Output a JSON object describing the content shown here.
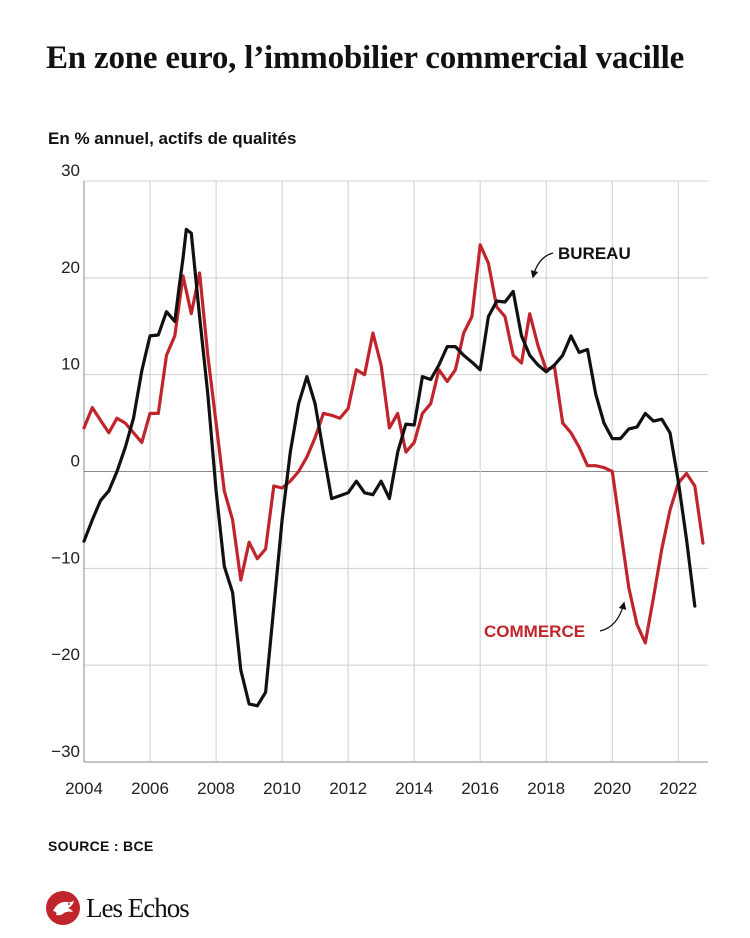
{
  "title": "En zone euro, l’immobilier commercial vacille",
  "subtitle": "En % annuel, actifs de qualités",
  "source": "SOURCE : BCE",
  "brand": "Les Echos",
  "colors": {
    "bureau": "#111111",
    "commerce": "#c0252b",
    "grid": "#cfcfcf",
    "logo": "#c0252b"
  },
  "chart_data": {
    "type": "line",
    "title": "En zone euro, l’immobilier commercial vacille",
    "subtitle": "En % annuel, actifs de qualités",
    "xlabel": "",
    "ylabel": "",
    "xlim": [
      2004,
      2022.9
    ],
    "ylim": [
      -30,
      30
    ],
    "yticks": [
      30,
      20,
      10,
      0,
      -10,
      -20,
      -30
    ],
    "ytick_labels": [
      "30",
      "20",
      "10",
      "0",
      "−10",
      "−20",
      "−30"
    ],
    "xticks": [
      2004,
      2006,
      2008,
      2010,
      2012,
      2014,
      2016,
      2018,
      2020,
      2022
    ],
    "xtick_labels": [
      "2004",
      "2006",
      "2008",
      "2010",
      "2012",
      "2014",
      "2016",
      "2018",
      "2020",
      "2022"
    ],
    "grid": true,
    "series": [
      {
        "name": "BUREAU",
        "color": "#111111",
        "points": [
          [
            2004.0,
            -7.2
          ],
          [
            2004.25,
            -5
          ],
          [
            2004.5,
            -3
          ],
          [
            2004.75,
            -2
          ],
          [
            2005.0,
            0
          ],
          [
            2005.25,
            2.5
          ],
          [
            2005.5,
            5.5
          ],
          [
            2005.75,
            10.4
          ],
          [
            2006.0,
            14.0
          ],
          [
            2006.25,
            14.1
          ],
          [
            2006.5,
            16.5
          ],
          [
            2006.75,
            15.5
          ],
          [
            2006.9,
            19.5
          ],
          [
            2007.0,
            22
          ],
          [
            2007.1,
            25
          ],
          [
            2007.25,
            24.6
          ],
          [
            2007.5,
            16
          ],
          [
            2007.75,
            8
          ],
          [
            2008.0,
            -2
          ],
          [
            2008.25,
            -9.8
          ],
          [
            2008.5,
            -12.5
          ],
          [
            2008.75,
            -20.5
          ],
          [
            2009.0,
            -24
          ],
          [
            2009.25,
            -24.2
          ],
          [
            2009.5,
            -22.8
          ],
          [
            2009.75,
            -14
          ],
          [
            2010.0,
            -5
          ],
          [
            2010.25,
            2
          ],
          [
            2010.5,
            7
          ],
          [
            2010.75,
            9.8
          ],
          [
            2011.0,
            7
          ],
          [
            2011.25,
            2
          ],
          [
            2011.5,
            -2.8
          ],
          [
            2011.75,
            -2.5
          ],
          [
            2012.0,
            -2.2
          ],
          [
            2012.25,
            -1
          ],
          [
            2012.5,
            -2.2
          ],
          [
            2012.75,
            -2.4
          ],
          [
            2013.0,
            -1
          ],
          [
            2013.25,
            -2.8
          ],
          [
            2013.5,
            2
          ],
          [
            2013.75,
            4.9
          ],
          [
            2014.0,
            4.8
          ],
          [
            2014.25,
            9.8
          ],
          [
            2014.5,
            9.5
          ],
          [
            2014.75,
            11
          ],
          [
            2015.0,
            12.9
          ],
          [
            2015.25,
            12.9
          ],
          [
            2015.5,
            12
          ],
          [
            2015.75,
            11.3
          ],
          [
            2016.0,
            10.5
          ],
          [
            2016.25,
            16
          ],
          [
            2016.5,
            17.6
          ],
          [
            2016.75,
            17.5
          ],
          [
            2017.0,
            18.6
          ],
          [
            2017.25,
            14
          ],
          [
            2017.5,
            12
          ],
          [
            2017.75,
            11
          ],
          [
            2018.0,
            10.3
          ],
          [
            2018.25,
            11
          ],
          [
            2018.5,
            12
          ],
          [
            2018.75,
            14
          ],
          [
            2019.0,
            12.3
          ],
          [
            2019.25,
            12.6
          ],
          [
            2019.5,
            8
          ],
          [
            2019.75,
            5
          ],
          [
            2020.0,
            3.4
          ],
          [
            2020.25,
            3.4
          ],
          [
            2020.5,
            4.4
          ],
          [
            2020.75,
            4.6
          ],
          [
            2021.0,
            6
          ],
          [
            2021.25,
            5.2
          ],
          [
            2021.5,
            5.4
          ],
          [
            2021.75,
            4
          ],
          [
            2022.0,
            -1
          ],
          [
            2022.25,
            -7
          ],
          [
            2022.5,
            -13.9
          ]
        ]
      },
      {
        "name": "COMMERCE",
        "color": "#c0252b",
        "points": [
          [
            2004.0,
            4.5
          ],
          [
            2004.25,
            6.6
          ],
          [
            2004.5,
            5.3
          ],
          [
            2004.75,
            4
          ],
          [
            2005.0,
            5.5
          ],
          [
            2005.25,
            5
          ],
          [
            2005.5,
            4
          ],
          [
            2005.75,
            3
          ],
          [
            2006.0,
            6
          ],
          [
            2006.25,
            6
          ],
          [
            2006.5,
            12
          ],
          [
            2006.75,
            14
          ],
          [
            2007.0,
            20.2
          ],
          [
            2007.25,
            16.3
          ],
          [
            2007.5,
            20.5
          ],
          [
            2007.75,
            12
          ],
          [
            2008.0,
            5
          ],
          [
            2008.25,
            -2
          ],
          [
            2008.5,
            -5
          ],
          [
            2008.75,
            -11.2
          ],
          [
            2009.0,
            -7.3
          ],
          [
            2009.25,
            -9
          ],
          [
            2009.5,
            -8
          ],
          [
            2009.75,
            -1.5
          ],
          [
            2010.0,
            -1.7
          ],
          [
            2010.25,
            -1
          ],
          [
            2010.5,
            0
          ],
          [
            2010.75,
            1.5
          ],
          [
            2011.0,
            3.5
          ],
          [
            2011.25,
            6
          ],
          [
            2011.5,
            5.8
          ],
          [
            2011.75,
            5.5
          ],
          [
            2012.0,
            6.5
          ],
          [
            2012.25,
            10.5
          ],
          [
            2012.5,
            10
          ],
          [
            2012.75,
            14.3
          ],
          [
            2013.0,
            11
          ],
          [
            2013.25,
            4.5
          ],
          [
            2013.5,
            6
          ],
          [
            2013.75,
            2
          ],
          [
            2014.0,
            3
          ],
          [
            2014.25,
            6
          ],
          [
            2014.5,
            7
          ],
          [
            2014.75,
            10.5
          ],
          [
            2015.0,
            9.3
          ],
          [
            2015.25,
            10.5
          ],
          [
            2015.5,
            14.3
          ],
          [
            2015.75,
            16
          ],
          [
            2016.0,
            23.4
          ],
          [
            2016.25,
            21.5
          ],
          [
            2016.5,
            17
          ],
          [
            2016.75,
            16
          ],
          [
            2017.0,
            12
          ],
          [
            2017.25,
            11.2
          ],
          [
            2017.5,
            16.3
          ],
          [
            2017.75,
            13
          ],
          [
            2018.0,
            10.5
          ],
          [
            2018.25,
            10.8
          ],
          [
            2018.5,
            5
          ],
          [
            2018.75,
            4
          ],
          [
            2019.0,
            2.5
          ],
          [
            2019.25,
            0.6
          ],
          [
            2019.5,
            0.6
          ],
          [
            2019.75,
            0.4
          ],
          [
            2020.0,
            0
          ],
          [
            2020.25,
            -6
          ],
          [
            2020.5,
            -12
          ],
          [
            2020.75,
            -15.8
          ],
          [
            2021.0,
            -17.7
          ],
          [
            2021.25,
            -13
          ],
          [
            2021.5,
            -8
          ],
          [
            2021.75,
            -4
          ],
          [
            2022.0,
            -1.2
          ],
          [
            2022.25,
            -0.2
          ],
          [
            2022.5,
            -1.5
          ],
          [
            2022.75,
            -7.4
          ]
        ]
      }
    ],
    "annotations": [
      {
        "text": "BUREAU",
        "series": "BUREAU",
        "x": 2017.0,
        "y": 18.6
      },
      {
        "text": "COMMERCE",
        "series": "COMMERCE",
        "x": 2020.25,
        "y": -13
      }
    ]
  }
}
